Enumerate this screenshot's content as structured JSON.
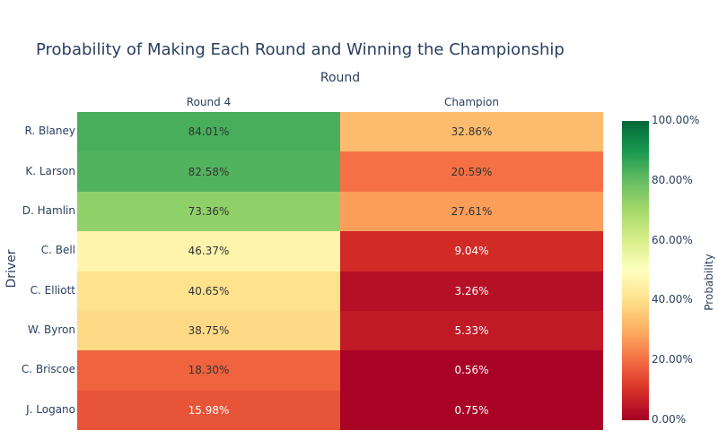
{
  "chart_data": {
    "type": "heatmap",
    "title": "Probability of Making Each Round and Winning the Championship",
    "xlabel": "Round",
    "ylabel": "Driver",
    "x": [
      "Round 4",
      "Champion"
    ],
    "y": [
      "R. Blaney",
      "K. Larson",
      "D. Hamlin",
      "C. Bell",
      "C. Elliott",
      "W. Byron",
      "C. Briscoe",
      "J. Logano"
    ],
    "z": [
      [
        84.01,
        32.86
      ],
      [
        82.58,
        20.59
      ],
      [
        73.36,
        27.61
      ],
      [
        46.37,
        9.04
      ],
      [
        40.65,
        3.26
      ],
      [
        38.75,
        5.33
      ],
      [
        18.3,
        0.56
      ],
      [
        15.98,
        0.75
      ]
    ],
    "text": [
      [
        "84.01%",
        "32.86%"
      ],
      [
        "82.58%",
        "20.59%"
      ],
      [
        "73.36%",
        "27.61%"
      ],
      [
        "46.37%",
        "9.04%"
      ],
      [
        "40.65%",
        "3.26%"
      ],
      [
        "38.75%",
        "5.33%"
      ],
      [
        "18.30%",
        "0.56%"
      ],
      [
        "15.98%",
        "0.75%"
      ]
    ],
    "colorscale": "RdYlGn",
    "zrange": [
      0,
      100
    ],
    "colorbar": {
      "title": "Probability",
      "ticks": [
        "0.00%",
        "20.00%",
        "40.00%",
        "60.00%",
        "80.00%",
        "100.00%"
      ]
    }
  }
}
